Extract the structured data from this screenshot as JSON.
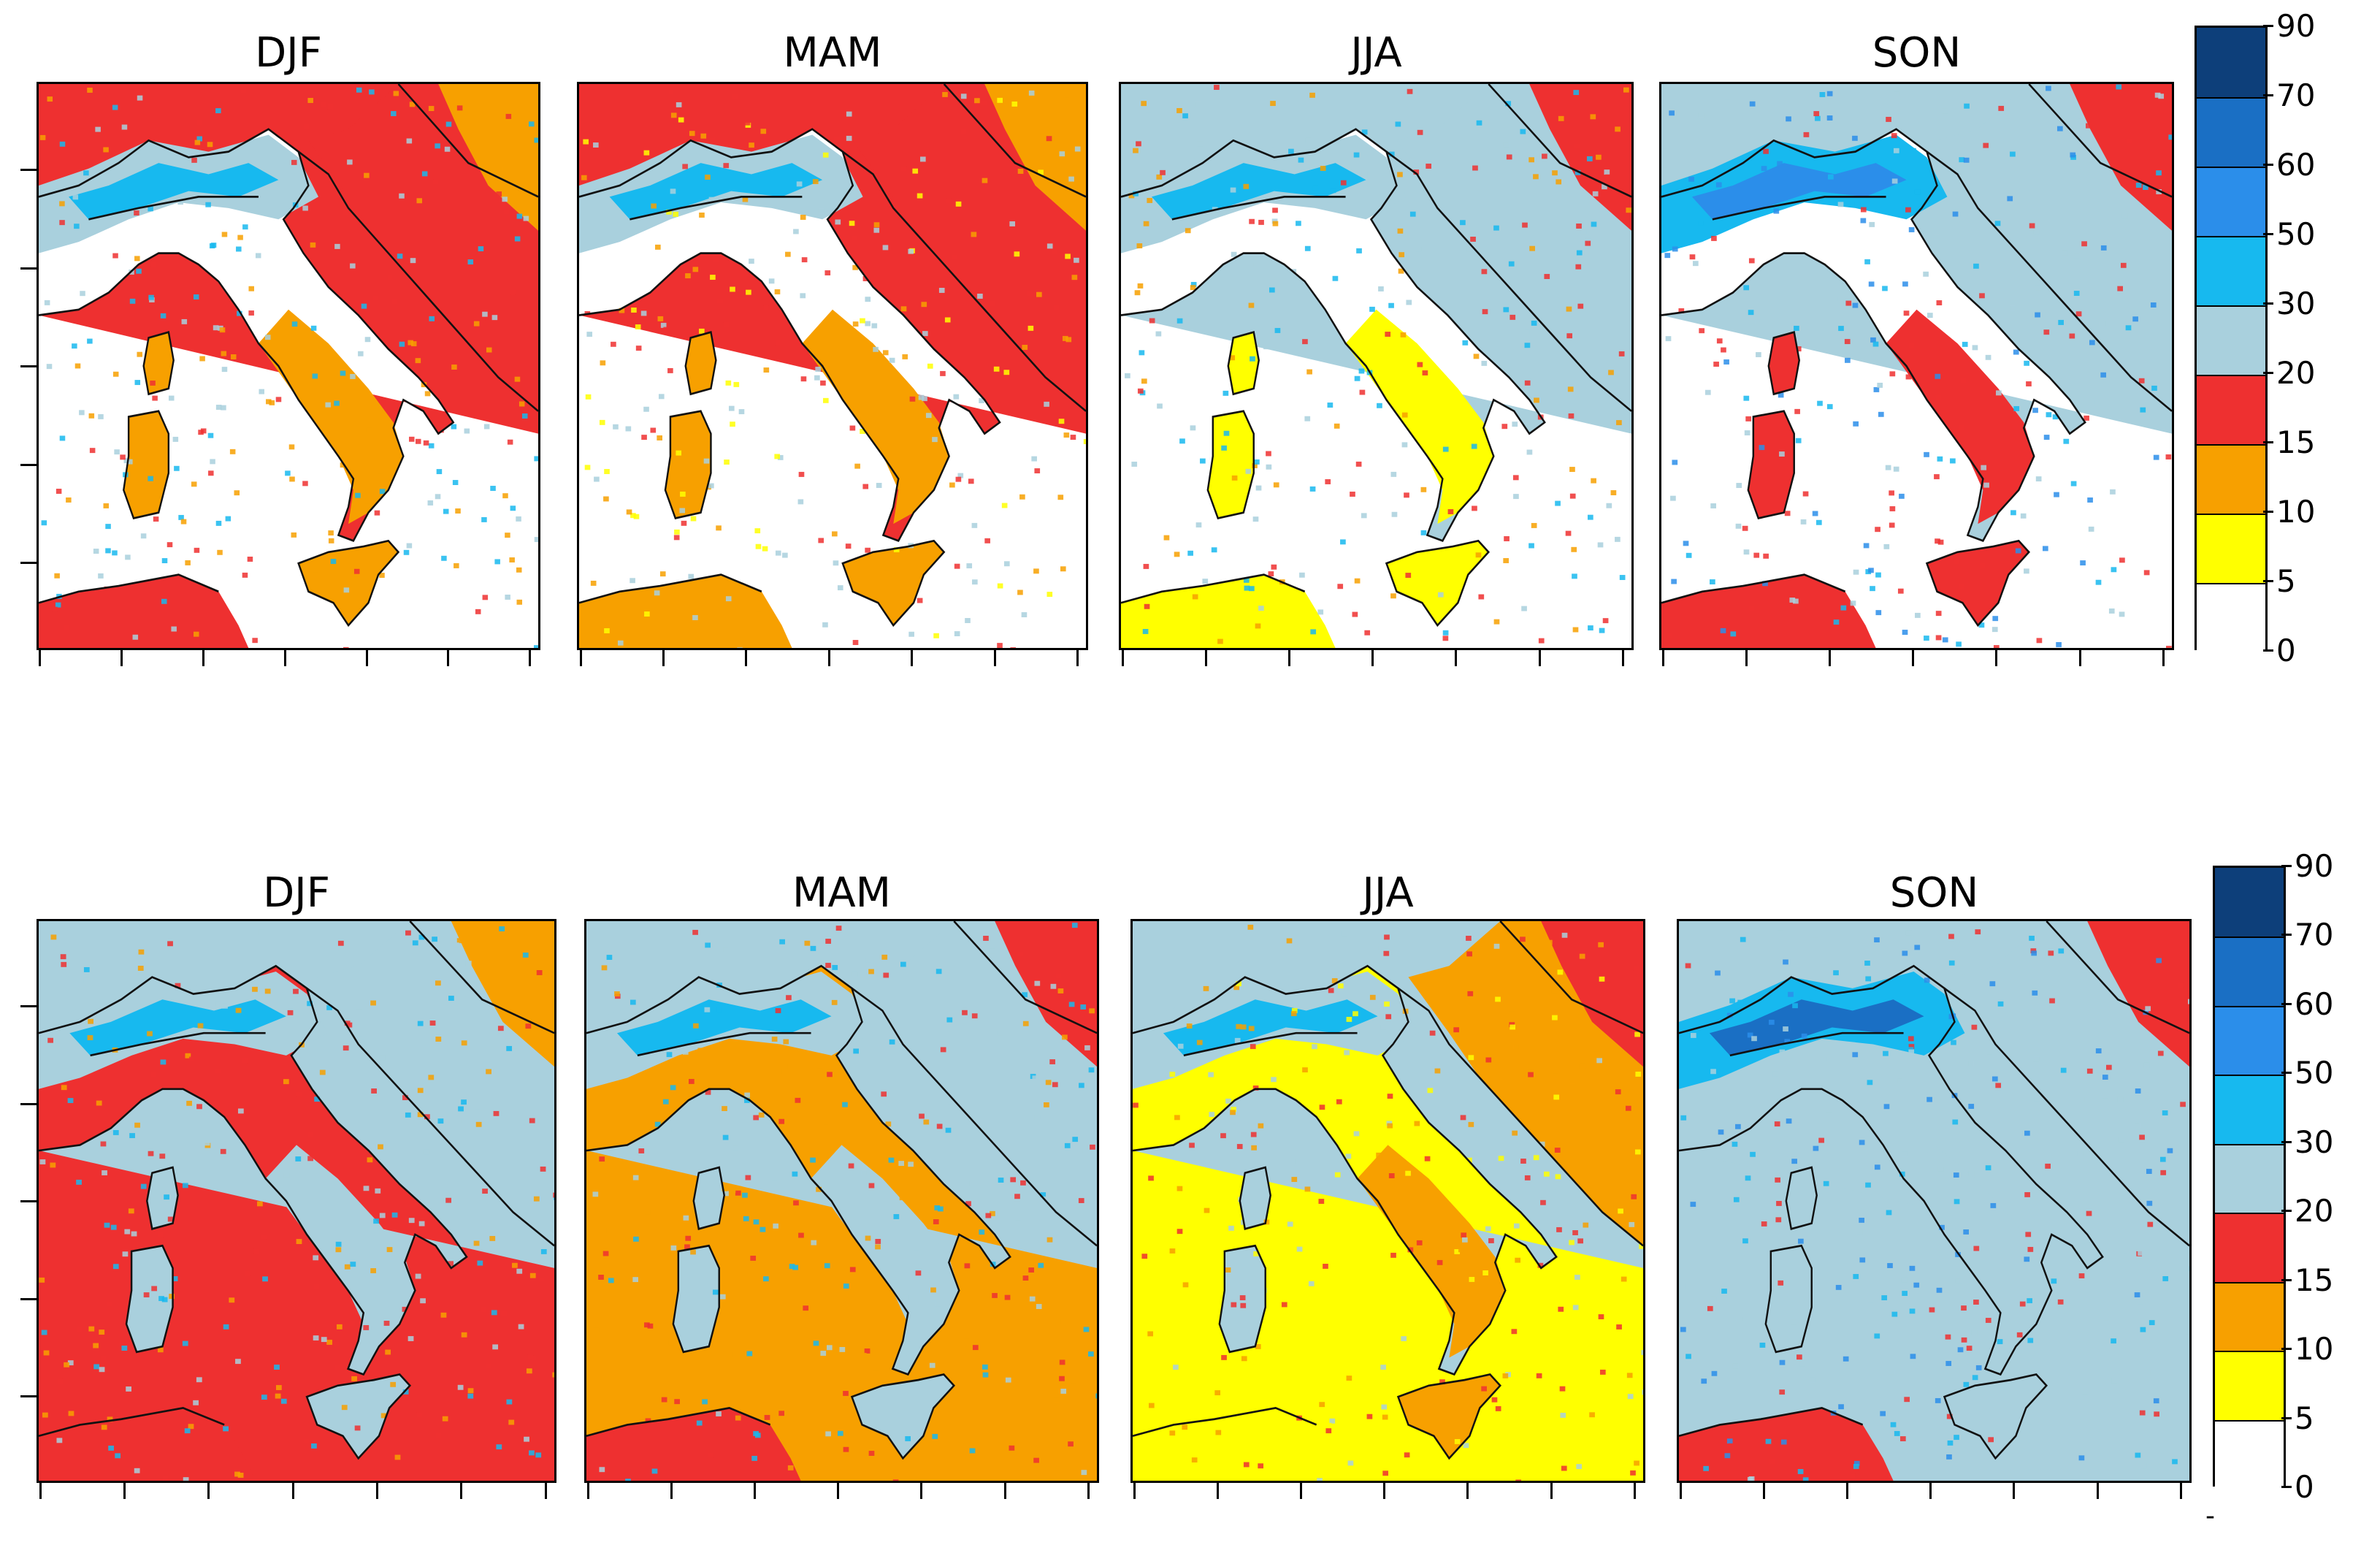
{
  "rows": [
    {
      "panels": [
        {
          "title": "DJF",
          "season": "winter"
        },
        {
          "title": "MAM",
          "season": "spring"
        },
        {
          "title": "JJA",
          "season": "summer"
        },
        {
          "title": "SON",
          "season": "autumn"
        }
      ],
      "colorbar": {
        "levels": [
          "90",
          "70",
          "60",
          "50",
          "30",
          "20",
          "15",
          "10",
          "5",
          "0"
        ]
      }
    },
    {
      "panels": [
        {
          "title": "DJF",
          "season": "winter"
        },
        {
          "title": "MAM",
          "season": "spring"
        },
        {
          "title": "JJA",
          "season": "summer"
        },
        {
          "title": "SON",
          "season": "autumn"
        }
      ],
      "colorbar": {
        "levels": [
          "90",
          "70",
          "60",
          "50",
          "30",
          "20",
          "15",
          "10",
          "5",
          "0"
        ]
      }
    }
  ],
  "colorbar_colors": [
    "#0d3f7a",
    "#1a6fc4",
    "#2b8eea",
    "#17b9ef",
    "#a9d0dd",
    "#ee3030",
    "#f7a000",
    "#ffff00",
    "#ffffff"
  ],
  "footer_mark": "-"
}
